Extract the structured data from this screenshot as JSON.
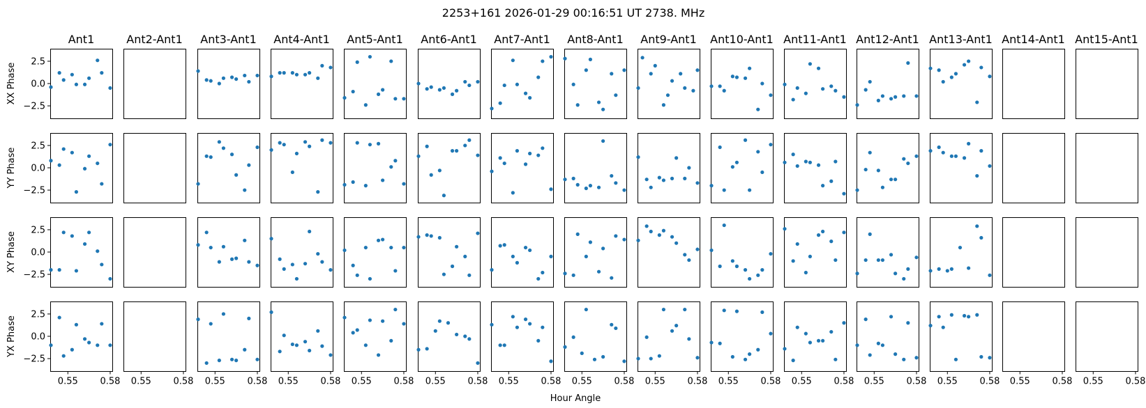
{
  "chart_data": {
    "type": "scatter",
    "title": "2253+161  2026-01-29 00:16:51 UT  2738. MHz",
    "xlabel": "Hour Angle",
    "columns": [
      "Ant1",
      "Ant2-Ant1",
      "Ant3-Ant1",
      "Ant4-Ant1",
      "Ant5-Ant1",
      "Ant6-Ant1",
      "Ant7-Ant1",
      "Ant8-Ant1",
      "Ant9-Ant1",
      "Ant10-Ant1",
      "Ant11-Ant1",
      "Ant12-Ant1",
      "Ant13-Ant1",
      "Ant14-Ant1",
      "Ant15-Ant1"
    ],
    "rows": [
      "XX Phase",
      "YY Phase",
      "XY Phase",
      "YX Phase"
    ],
    "xlim": [
      0.5375,
      0.5815
    ],
    "ylim": [
      -3.9,
      3.9
    ],
    "xticks": [
      0.55,
      0.58
    ],
    "xtick_labels": [
      "0.55",
      "0.58"
    ],
    "yticks": [
      2.5,
      0.0,
      -2.5
    ],
    "ytick_labels": [
      "2.5",
      "0.0",
      "−2.5"
    ],
    "marker_color": "#1f77b4",
    "x": [
      0.538,
      0.541,
      0.544,
      0.547,
      0.55,
      0.553,
      0.556,
      0.559,
      0.562,
      0.565,
      0.568,
      0.571,
      0.574,
      0.577,
      0.58
    ],
    "panels": [
      [
        [
          -0.4,
          1.2,
          0.4,
          1.0,
          -0.1,
          -0.1,
          0.6,
          2.6,
          1.2,
          -0.5
        ],
        [],
        [
          1.4,
          0.4,
          0.3,
          0.0,
          0.6,
          0.7,
          0.5,
          0.9,
          0.2,
          0.9
        ],
        [
          0.8,
          1.2,
          1.2,
          1.2,
          1.0,
          1.0,
          1.2,
          0.6,
          2.0,
          1.8
        ],
        [
          -1.6,
          -0.9,
          2.4,
          -2.4,
          3.0,
          -1.2,
          -0.7,
          2.5,
          -1.7,
          -1.7
        ],
        [
          0.0,
          -0.6,
          -0.4,
          -0.7,
          -0.5,
          -1.2,
          -0.8,
          0.2,
          -0.2,
          0.2
        ],
        [
          -2.8,
          -2.2,
          -0.2,
          2.6,
          -0.1,
          -1.1,
          -1.6,
          0.7,
          2.5,
          3.0
        ],
        [
          2.8,
          -0.1,
          -2.4,
          1.5,
          2.7,
          -2.1,
          -2.9,
          1.1,
          -1.3,
          1.5
        ],
        [
          -0.5,
          2.9,
          1.1,
          2.0,
          -2.4,
          -1.3,
          0.3,
          1.1,
          -0.5,
          -0.8,
          1.5
        ],
        [
          -0.3,
          -0.3,
          -0.8,
          0.8,
          0.7,
          0.6,
          1.7,
          -2.9,
          0.0,
          -1.3
        ],
        [
          -0.1,
          -1.8,
          -0.5,
          -1.1,
          2.2,
          1.7,
          -0.6,
          -0.3,
          -0.8,
          -1.5
        ],
        [
          -2.4,
          -0.7,
          0.2,
          -1.9,
          -1.4,
          -1.7,
          -1.5,
          -1.4,
          2.3,
          -1.4
        ],
        [
          1.7,
          1.5,
          0.2,
          0.7,
          1.1,
          2.1,
          2.5,
          -2.1,
          1.8,
          0.8
        ],
        [],
        []
      ],
      [
        [
          0.8,
          0.3,
          2.1,
          1.7,
          -2.7,
          -0.1,
          1.3,
          0.5,
          -1.8,
          2.6
        ],
        [],
        [
          -1.8,
          1.3,
          1.2,
          2.9,
          2.2,
          1.5,
          -0.8,
          -2.5,
          0.3,
          2.3
        ],
        [
          2.0,
          2.8,
          2.6,
          -0.5,
          1.6,
          2.9,
          2.4,
          -2.7,
          3.1,
          2.8
        ],
        [
          -1.9,
          -1.6,
          2.8,
          -2.0,
          2.6,
          2.7,
          -1.4,
          0.1,
          0.8,
          -1.8
        ],
        [
          1.3,
          2.4,
          -0.8,
          -0.3,
          -3.1,
          1.9,
          1.9,
          2.5,
          3.1,
          1.4
        ],
        [
          -0.4,
          1.1,
          0.5,
          -2.8,
          1.9,
          0.4,
          1.6,
          1.4,
          2.2,
          -2.4
        ],
        [
          -1.3,
          -1.2,
          -1.9,
          -2.3,
          -2.0,
          -2.2,
          3.0,
          -0.9,
          -1.7,
          -2.5
        ],
        [
          1.2,
          -1.3,
          -2.2,
          -1.1,
          -1.4,
          -1.2,
          1.1,
          -1.2,
          0.0,
          -1.7
        ],
        [
          -2.0,
          2.3,
          -2.5,
          0.1,
          0.6,
          3.1,
          -2.5,
          1.8,
          -0.5,
          2.6
        ],
        [
          0.6,
          1.5,
          0.2,
          0.7,
          0.6,
          0.3,
          -2.0,
          -1.5,
          0.7,
          -2.9
        ],
        [
          -2.5,
          -0.2,
          1.7,
          -0.3,
          -2.2,
          -1.3,
          -1.3,
          1.0,
          0.5,
          1.3
        ],
        [
          1.9,
          2.3,
          1.7,
          1.3,
          1.3,
          1.1,
          2.7,
          -0.9,
          1.9,
          0.2
        ],
        [],
        []
      ],
      [
        [
          -2.0,
          -2.0,
          2.2,
          1.8,
          -2.1,
          0.9,
          2.2,
          0.1,
          -1.4,
          -3.0
        ],
        [],
        [
          0.8,
          2.2,
          0.5,
          -1.1,
          0.6,
          -0.8,
          -0.7,
          1.3,
          -1.1,
          -1.5
        ],
        [
          1.5,
          -0.8,
          -1.9,
          -1.4,
          -3.0,
          -1.3,
          2.3,
          -0.2,
          -1.1,
          -2.0
        ],
        [
          0.2,
          -1.5,
          -2.6,
          0.5,
          -3.0,
          1.3,
          1.4,
          0.5,
          -2.1,
          0.5
        ],
        [
          1.7,
          1.9,
          1.8,
          1.6,
          -2.5,
          -1.6,
          0.6,
          -0.5,
          -2.6,
          2.1
        ],
        [
          -2.0,
          0.7,
          0.8,
          -0.5,
          -1.2,
          0.5,
          0.2,
          -3.0,
          -2.3,
          -0.5
        ],
        [
          -2.4,
          -2.6,
          2.0,
          -0.5,
          1.1,
          -2.2,
          0.4,
          -2.9,
          1.8,
          1.4
        ],
        [
          1.3,
          2.9,
          2.3,
          1.9,
          2.4,
          1.7,
          1.0,
          -0.3,
          -0.9,
          0.3
        ],
        [
          0.2,
          -1.6,
          3.0,
          -1.0,
          -1.6,
          -2.0,
          -3.0,
          -2.6,
          -2.0,
          -0.2
        ],
        [
          2.6,
          -1.0,
          0.9,
          -2.3,
          -0.5,
          1.9,
          2.3,
          1.2,
          -0.9,
          2.2
        ],
        [
          -2.4,
          -0.9,
          2.0,
          -0.9,
          -0.9,
          -0.3,
          -2.4,
          -3.0,
          -1.9,
          -0.6
        ],
        [
          -2.1,
          -1.9,
          -2.1,
          -1.9,
          0.5,
          -1.8,
          2.9,
          1.6,
          -2.6
        ],
        [],
        []
      ],
      [
        [
          -1.0,
          2.1,
          -2.2,
          -1.5,
          1.3,
          -0.3,
          -0.7,
          -1.0,
          1.4,
          -1.0
        ],
        [],
        [
          1.9,
          -3.0,
          1.4,
          -2.7,
          2.5,
          -2.6,
          -2.7,
          -1.5,
          2.0,
          -2.6
        ],
        [
          2.7,
          -1.7,
          0.1,
          -0.9,
          -1.0,
          -0.6,
          -1.6,
          0.6,
          -1.1,
          -2.1
        ],
        [
          2.1,
          0.4,
          0.7,
          -1.0,
          1.8,
          -2.1,
          1.7,
          -0.5,
          3.0,
          1.4
        ],
        [
          -1.5,
          -1.4,
          0.6,
          1.7,
          1.5,
          0.2,
          0.0,
          -0.3,
          -3.0
        ],
        [
          1.3,
          -1.0,
          -1.0,
          2.2,
          1.0,
          1.9,
          1.4,
          -0.5,
          1.0,
          -2.8
        ],
        [
          -1.2,
          -0.1,
          -1.9,
          3.0,
          -2.6,
          -2.3,
          1.3,
          0.9,
          -2.8
        ],
        [
          -2.5,
          -0.1,
          -2.5,
          -2.2,
          3.0,
          0.6,
          1.2,
          3.0,
          -0.3,
          -2.4
        ],
        [
          -0.7,
          -0.8,
          2.9,
          -2.3,
          2.8,
          -2.6,
          -2.0,
          -1.5,
          2.7,
          0.3
        ],
        [
          -1.4,
          -2.7,
          1.0,
          0.3,
          -0.7,
          -0.5,
          -0.5,
          0.5,
          -2.6,
          1.5
        ],
        [
          -1.0,
          1.9,
          -2.1,
          -0.8,
          -1.0,
          2.2,
          -2.0,
          -2.6,
          1.5,
          -2.4
        ],
        [
          1.2,
          2.2,
          1.0,
          2.4,
          -2.6,
          2.3,
          2.2,
          2.4,
          -2.3,
          -2.4
        ],
        [],
        []
      ]
    ]
  }
}
